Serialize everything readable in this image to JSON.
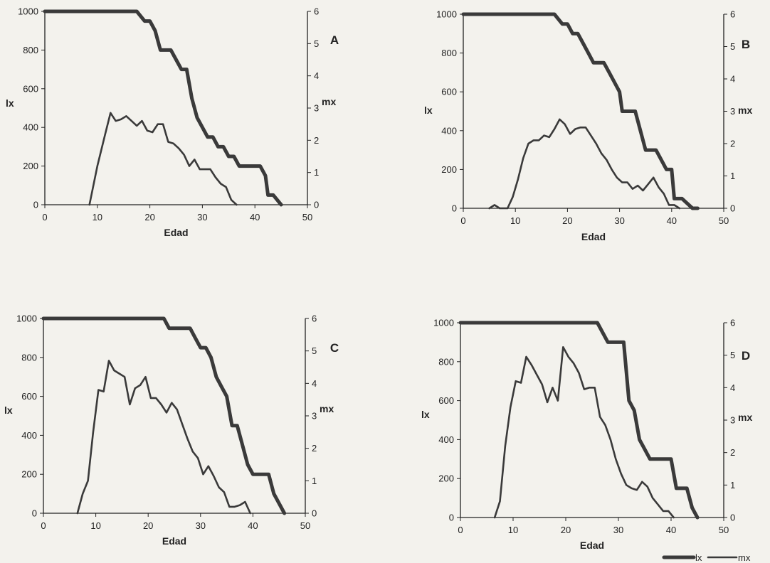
{
  "legend": {
    "position": "bottom-right",
    "items": [
      {
        "label": "lx",
        "style": "thick"
      },
      {
        "label": "mx",
        "style": "thin"
      }
    ]
  },
  "colors": {
    "line": "#3a3a3a",
    "axis": "#222222",
    "background": "#f3f2ed"
  },
  "chart_data": [
    {
      "type": "line",
      "panel_label": "A",
      "xlabel": "Edad",
      "ylabel_left": "lx",
      "ylabel_right": "mx",
      "xlim": [
        0,
        50
      ],
      "ylim_left": [
        0,
        1000
      ],
      "ylim_right": [
        0,
        6
      ],
      "xticks": [
        "0",
        "10",
        "20",
        "30",
        "40",
        "50"
      ],
      "yticks_left": [
        "0",
        "200",
        "400",
        "600",
        "800",
        "1000"
      ],
      "yticks_right": [
        "0",
        "1",
        "2",
        "3",
        "4",
        "5",
        "6"
      ],
      "grid": false,
      "series": [
        {
          "name": "lx",
          "axis": "left",
          "points": [
            [
              0,
              1000
            ],
            [
              17.5,
              1000
            ],
            [
              19,
              950
            ],
            [
              20,
              950
            ],
            [
              21,
              900
            ],
            [
              22,
              800
            ],
            [
              24,
              800
            ],
            [
              25,
              750
            ],
            [
              26,
              700
            ],
            [
              27,
              700
            ],
            [
              28,
              550
            ],
            [
              29,
              450
            ],
            [
              30,
              400
            ],
            [
              31,
              350
            ],
            [
              32,
              350
            ],
            [
              33,
              300
            ],
            [
              34,
              300
            ],
            [
              35,
              250
            ],
            [
              36,
              250
            ],
            [
              37,
              200
            ],
            [
              40,
              200
            ],
            [
              41,
              200
            ],
            [
              42,
              150
            ],
            [
              42.5,
              50
            ],
            [
              43.5,
              50
            ],
            [
              45,
              0
            ]
          ]
        },
        {
          "name": "mx",
          "axis": "right",
          "points": [
            [
              8.5,
              0
            ],
            [
              10,
              1.2
            ],
            [
              11.5,
              2.2
            ],
            [
              12.5,
              2.85
            ],
            [
              13.5,
              2.6
            ],
            [
              14.5,
              2.65
            ],
            [
              15.5,
              2.75
            ],
            [
              16.5,
              2.6
            ],
            [
              17.5,
              2.45
            ],
            [
              18.5,
              2.6
            ],
            [
              19.5,
              2.3
            ],
            [
              20.5,
              2.25
            ],
            [
              21.5,
              2.5
            ],
            [
              22.5,
              2.5
            ],
            [
              23.5,
              1.95
            ],
            [
              24.5,
              1.9
            ],
            [
              25.5,
              1.75
            ],
            [
              26.5,
              1.55
            ],
            [
              27.5,
              1.2
            ],
            [
              28.5,
              1.4
            ],
            [
              29.5,
              1.1
            ],
            [
              31.5,
              1.1
            ],
            [
              32.5,
              0.85
            ],
            [
              33.5,
              0.65
            ],
            [
              34.5,
              0.55
            ],
            [
              35.5,
              0.15
            ],
            [
              36.5,
              0
            ]
          ]
        }
      ]
    },
    {
      "type": "line",
      "panel_label": "B",
      "xlabel": "Edad",
      "ylabel_left": "lx",
      "ylabel_right": "mx",
      "xlim": [
        0,
        50
      ],
      "ylim_left": [
        0,
        1000
      ],
      "ylim_right": [
        0,
        6
      ],
      "xticks": [
        "0",
        "10",
        "20",
        "30",
        "40",
        "50"
      ],
      "yticks_left": [
        "0",
        "200",
        "400",
        "600",
        "800",
        "1000"
      ],
      "yticks_right": [
        "0",
        "1",
        "2",
        "3",
        "4",
        "5",
        "6"
      ],
      "grid": false,
      "series": [
        {
          "name": "lx",
          "axis": "left",
          "points": [
            [
              0,
              1000
            ],
            [
              17.5,
              1000
            ],
            [
              19,
              950
            ],
            [
              20,
              950
            ],
            [
              21,
              900
            ],
            [
              22,
              900
            ],
            [
              23,
              850
            ],
            [
              24,
              800
            ],
            [
              25,
              750
            ],
            [
              27,
              750
            ],
            [
              28,
              700
            ],
            [
              29,
              650
            ],
            [
              30,
              600
            ],
            [
              30.5,
              500
            ],
            [
              33,
              500
            ],
            [
              34,
              400
            ],
            [
              35,
              300
            ],
            [
              37,
              300
            ],
            [
              38,
              250
            ],
            [
              39,
              200
            ],
            [
              40,
              200
            ],
            [
              40.5,
              50
            ],
            [
              42,
              50
            ],
            [
              44,
              0
            ],
            [
              45,
              0
            ]
          ]
        },
        {
          "name": "mx",
          "axis": "right",
          "points": [
            [
              5,
              0
            ],
            [
              6,
              0.1
            ],
            [
              7,
              0
            ],
            [
              8.5,
              0
            ],
            [
              9.5,
              0.35
            ],
            [
              10.5,
              0.9
            ],
            [
              11.5,
              1.55
            ],
            [
              12.5,
              2.0
            ],
            [
              13.5,
              2.1
            ],
            [
              14.5,
              2.1
            ],
            [
              15.5,
              2.25
            ],
            [
              16.5,
              2.2
            ],
            [
              17.5,
              2.45
            ],
            [
              18.5,
              2.75
            ],
            [
              19.5,
              2.6
            ],
            [
              20.5,
              2.3
            ],
            [
              21.5,
              2.45
            ],
            [
              22.5,
              2.5
            ],
            [
              23.5,
              2.5
            ],
            [
              24.5,
              2.25
            ],
            [
              25.5,
              2.0
            ],
            [
              26.5,
              1.7
            ],
            [
              27.5,
              1.5
            ],
            [
              28.5,
              1.2
            ],
            [
              29.5,
              0.95
            ],
            [
              30.5,
              0.8
            ],
            [
              31.5,
              0.8
            ],
            [
              32.5,
              0.6
            ],
            [
              33.5,
              0.7
            ],
            [
              34.5,
              0.55
            ],
            [
              35.5,
              0.75
            ],
            [
              36.5,
              0.95
            ],
            [
              37.5,
              0.65
            ],
            [
              38.5,
              0.45
            ],
            [
              39.5,
              0.1
            ],
            [
              40.5,
              0.1
            ],
            [
              41.5,
              0
            ]
          ]
        }
      ]
    },
    {
      "type": "line",
      "panel_label": "C",
      "xlabel": "Edad",
      "ylabel_left": "lx",
      "ylabel_right": "mx",
      "xlim": [
        0,
        50
      ],
      "ylim_left": [
        0,
        1000
      ],
      "ylim_right": [
        0,
        6
      ],
      "xticks": [
        "0",
        "10",
        "20",
        "30",
        "40",
        "50"
      ],
      "yticks_left": [
        "0",
        "200",
        "400",
        "600",
        "800",
        "1000"
      ],
      "yticks_right": [
        "0",
        "1",
        "2",
        "3",
        "4",
        "5",
        "6"
      ],
      "grid": false,
      "series": [
        {
          "name": "lx",
          "axis": "left",
          "points": [
            [
              0,
              1000
            ],
            [
              23,
              1000
            ],
            [
              24,
              950
            ],
            [
              28,
              950
            ],
            [
              29,
              900
            ],
            [
              30,
              850
            ],
            [
              31,
              850
            ],
            [
              32,
              800
            ],
            [
              33,
              700
            ],
            [
              34,
              650
            ],
            [
              35,
              600
            ],
            [
              36,
              450
            ],
            [
              37,
              450
            ],
            [
              38,
              350
            ],
            [
              39,
              250
            ],
            [
              40,
              200
            ],
            [
              43,
              200
            ],
            [
              44,
              100
            ],
            [
              46,
              0
            ]
          ]
        },
        {
          "name": "mx",
          "axis": "right",
          "points": [
            [
              6.5,
              0
            ],
            [
              7.5,
              0.6
            ],
            [
              8.5,
              1.0
            ],
            [
              9.5,
              2.5
            ],
            [
              10.5,
              3.8
            ],
            [
              11.5,
              3.75
            ],
            [
              12.5,
              4.7
            ],
            [
              13.5,
              4.4
            ],
            [
              14.5,
              4.3
            ],
            [
              15.5,
              4.2
            ],
            [
              16.5,
              3.35
            ],
            [
              17.5,
              3.85
            ],
            [
              18.5,
              3.95
            ],
            [
              19.5,
              4.2
            ],
            [
              20.5,
              3.55
            ],
            [
              21.5,
              3.55
            ],
            [
              22.5,
              3.35
            ],
            [
              23.5,
              3.1
            ],
            [
              24.5,
              3.4
            ],
            [
              25.5,
              3.2
            ],
            [
              26.5,
              2.75
            ],
            [
              27.5,
              2.3
            ],
            [
              28.5,
              1.9
            ],
            [
              29.5,
              1.7
            ],
            [
              30.5,
              1.2
            ],
            [
              31.5,
              1.45
            ],
            [
              32.5,
              1.15
            ],
            [
              33.5,
              0.8
            ],
            [
              34.5,
              0.65
            ],
            [
              35.5,
              0.2
            ],
            [
              36.5,
              0.2
            ],
            [
              37.5,
              0.25
            ],
            [
              38.5,
              0.35
            ],
            [
              39.5,
              0
            ]
          ]
        }
      ]
    },
    {
      "type": "line",
      "panel_label": "D",
      "xlabel": "Edad",
      "ylabel_left": "lx",
      "ylabel_right": "mx",
      "xlim": [
        0,
        50
      ],
      "ylim_left": [
        0,
        1000
      ],
      "ylim_right": [
        0,
        6
      ],
      "xticks": [
        "0",
        "10",
        "20",
        "30",
        "40",
        "50"
      ],
      "yticks_left": [
        "0",
        "200",
        "400",
        "600",
        "800",
        "1000"
      ],
      "yticks_right": [
        "0",
        "1",
        "2",
        "3",
        "4",
        "5",
        "6"
      ],
      "grid": false,
      "series": [
        {
          "name": "lx",
          "axis": "left",
          "points": [
            [
              0,
              1000
            ],
            [
              26,
              1000
            ],
            [
              28,
              900
            ],
            [
              31,
              900
            ],
            [
              32,
              600
            ],
            [
              33,
              550
            ],
            [
              34,
              400
            ],
            [
              35,
              350
            ],
            [
              36,
              300
            ],
            [
              40,
              300
            ],
            [
              41,
              150
            ],
            [
              43,
              150
            ],
            [
              44,
              50
            ],
            [
              45,
              0
            ]
          ]
        },
        {
          "name": "mx",
          "axis": "right",
          "points": [
            [
              6.5,
              0
            ],
            [
              7.5,
              0.5
            ],
            [
              8.5,
              2.2
            ],
            [
              9.5,
              3.4
            ],
            [
              10.5,
              4.2
            ],
            [
              11.5,
              4.15
            ],
            [
              12.5,
              4.95
            ],
            [
              13.5,
              4.7
            ],
            [
              14.5,
              4.4
            ],
            [
              15.5,
              4.1
            ],
            [
              16.5,
              3.55
            ],
            [
              17.5,
              4.0
            ],
            [
              18.5,
              3.6
            ],
            [
              19.5,
              5.25
            ],
            [
              20.5,
              4.95
            ],
            [
              21.5,
              4.75
            ],
            [
              22.5,
              4.45
            ],
            [
              23.5,
              3.95
            ],
            [
              24.5,
              4.0
            ],
            [
              25.5,
              4.0
            ],
            [
              26.5,
              3.1
            ],
            [
              27.5,
              2.85
            ],
            [
              28.5,
              2.4
            ],
            [
              29.5,
              1.8
            ],
            [
              30.5,
              1.35
            ],
            [
              31.5,
              1.0
            ],
            [
              32.5,
              0.9
            ],
            [
              33.5,
              0.85
            ],
            [
              34.5,
              1.1
            ],
            [
              35.5,
              0.95
            ],
            [
              36.5,
              0.6
            ],
            [
              37.5,
              0.4
            ],
            [
              38.5,
              0.2
            ],
            [
              39.5,
              0.2
            ],
            [
              40.5,
              0
            ]
          ]
        }
      ]
    }
  ]
}
